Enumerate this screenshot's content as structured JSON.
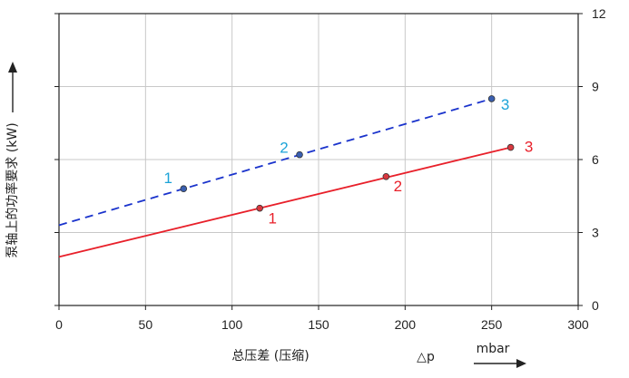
{
  "chart_data": {
    "type": "line",
    "xlabel": "总压差 (压缩)",
    "xsymbol": "△p",
    "xunit": "mbar",
    "ylabel": "泵轴上的功率要求 (kW)",
    "xlim": [
      0,
      300
    ],
    "ylim_left": [
      0,
      12
    ],
    "ylim_right": [
      0,
      12
    ],
    "x_ticks": [
      "0",
      "50",
      "100",
      "150",
      "200",
      "250",
      "300"
    ],
    "y_ticks_right": [
      "0",
      "3",
      "6",
      "9",
      "12"
    ],
    "grid": true,
    "series": [
      {
        "color": "#1a33cc",
        "label_color": "#1ca3d8",
        "line_style": "dashed",
        "line": {
          "x": [
            0,
            250
          ],
          "y": [
            3.3,
            8.5
          ]
        },
        "points": [
          {
            "label": "1",
            "x": 72,
            "y": 4.8
          },
          {
            "label": "2",
            "x": 139,
            "y": 6.2
          },
          {
            "label": "3",
            "x": 250,
            "y": 8.5
          }
        ]
      },
      {
        "color": "#e8202a",
        "label_color": "#e8202a",
        "line_style": "solid",
        "line": {
          "x": [
            0,
            261
          ],
          "y": [
            2.0,
            6.5
          ]
        },
        "points": [
          {
            "label": "1",
            "x": 116,
            "y": 4.0
          },
          {
            "label": "2",
            "x": 189,
            "y": 5.3
          },
          {
            "label": "3",
            "x": 261,
            "y": 6.5
          }
        ]
      }
    ]
  }
}
